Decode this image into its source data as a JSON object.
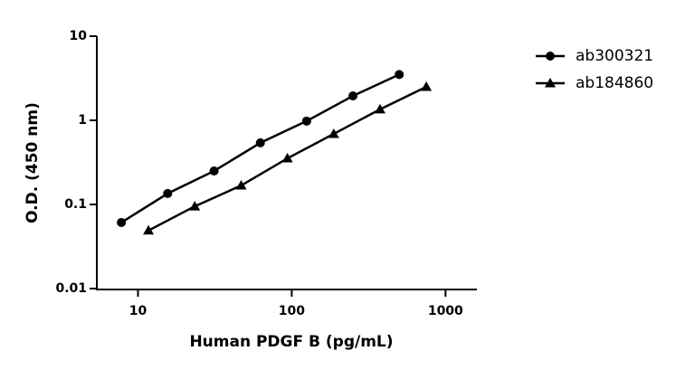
{
  "chart_data": {
    "type": "line",
    "x_label": "Human PDGF B (pg/mL)",
    "y_label": "O.D. (450 nm)",
    "xscale": "log",
    "yscale": "log",
    "xlim": [
      5.4,
      1600
    ],
    "ylim": [
      0.01,
      10
    ],
    "xticks": [
      10,
      100,
      1000
    ],
    "yticks": [
      0.01,
      0.1,
      1,
      10
    ],
    "legend": "upper right",
    "series": [
      {
        "name": "ab300321",
        "color": "#000000",
        "marker": "circle",
        "x": [
          7.8,
          15.6,
          31.25,
          62.5,
          125,
          250,
          500
        ],
        "values": [
          0.061,
          0.135,
          0.25,
          0.54,
          0.98,
          1.95,
          3.5
        ]
      },
      {
        "name": "ab184860",
        "color": "#000000",
        "marker": "triangle",
        "x": [
          11.7,
          23.4,
          46.9,
          93.75,
          187.5,
          375,
          750
        ],
        "values": [
          0.049,
          0.095,
          0.168,
          0.353,
          0.69,
          1.35,
          2.5
        ]
      }
    ]
  }
}
